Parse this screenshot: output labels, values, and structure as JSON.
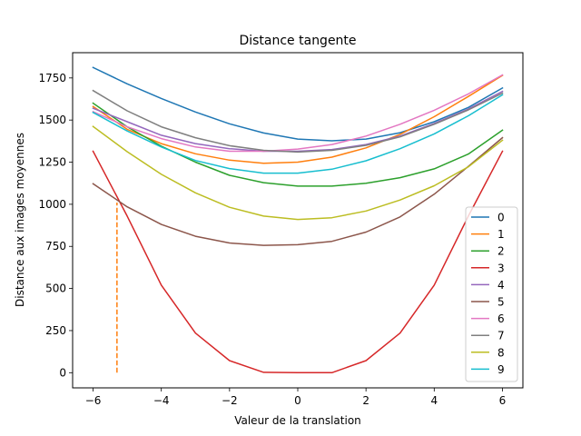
{
  "chart_data": {
    "type": "line",
    "title": "Distance tangente",
    "xlabel": "Valeur de la translation",
    "ylabel": "Distance aux images moyennes",
    "xlim": [
      -6.6,
      6.6
    ],
    "ylim": [
      -90,
      1900
    ],
    "xticks": [
      -6,
      -4,
      -2,
      0,
      2,
      4,
      6
    ],
    "xtick_labels": [
      "−6",
      "−4",
      "−2",
      "0",
      "2",
      "4",
      "6"
    ],
    "yticks": [
      0,
      250,
      500,
      750,
      1000,
      1250,
      1500,
      1750
    ],
    "ytick_labels": [
      "0",
      "250",
      "500",
      "750",
      "1000",
      "1250",
      "1500",
      "1750"
    ],
    "grid": false,
    "legend_position": "lower-right",
    "x": [
      -6,
      -5,
      -4,
      -3,
      -2,
      -1,
      0,
      1,
      2,
      3,
      4,
      5,
      6
    ],
    "series": [
      {
        "name": "0",
        "color": "#1f77b4",
        "values": [
          1812,
          1715,
          1628,
          1548,
          1478,
          1423,
          1387,
          1377,
          1387,
          1425,
          1490,
          1575,
          1690
        ]
      },
      {
        "name": "1",
        "color": "#ff7f0e",
        "values": [
          1580,
          1445,
          1360,
          1300,
          1262,
          1243,
          1250,
          1280,
          1335,
          1415,
          1520,
          1640,
          1765
        ]
      },
      {
        "name": "2",
        "color": "#2ca02c",
        "values": [
          1600,
          1460,
          1345,
          1250,
          1172,
          1128,
          1108,
          1108,
          1125,
          1158,
          1210,
          1298,
          1440
        ]
      },
      {
        "name": "3",
        "color": "#d62728",
        "values": [
          1315,
          930,
          520,
          235,
          72,
          2,
          0,
          0,
          72,
          235,
          520,
          930,
          1315
        ]
      },
      {
        "name": "4",
        "color": "#9467bd",
        "values": [
          1570,
          1490,
          1410,
          1360,
          1330,
          1315,
          1315,
          1325,
          1355,
          1405,
          1480,
          1565,
          1670
        ]
      },
      {
        "name": "5",
        "color": "#8c564b",
        "values": [
          1122,
          985,
          880,
          810,
          770,
          756,
          760,
          780,
          835,
          925,
          1060,
          1225,
          1395
        ]
      },
      {
        "name": "6",
        "color": "#e377c2",
        "values": [
          1550,
          1460,
          1390,
          1340,
          1315,
          1315,
          1328,
          1355,
          1405,
          1475,
          1558,
          1655,
          1768
        ]
      },
      {
        "name": "7",
        "color": "#7f7f7f",
        "values": [
          1675,
          1555,
          1460,
          1395,
          1348,
          1320,
          1310,
          1320,
          1350,
          1400,
          1475,
          1560,
          1660
        ]
      },
      {
        "name": "8",
        "color": "#bcbd22",
        "values": [
          1462,
          1312,
          1178,
          1068,
          982,
          930,
          910,
          920,
          960,
          1025,
          1110,
          1222,
          1380
        ]
      },
      {
        "name": "9",
        "color": "#17becf",
        "values": [
          1545,
          1435,
          1340,
          1260,
          1212,
          1185,
          1185,
          1208,
          1258,
          1330,
          1418,
          1525,
          1650
        ]
      }
    ],
    "annotations": [
      {
        "type": "vertical-dashed-line",
        "x": -5.3,
        "y_from": 0,
        "y_to": 1010,
        "color": "#ff7f0e"
      }
    ]
  }
}
